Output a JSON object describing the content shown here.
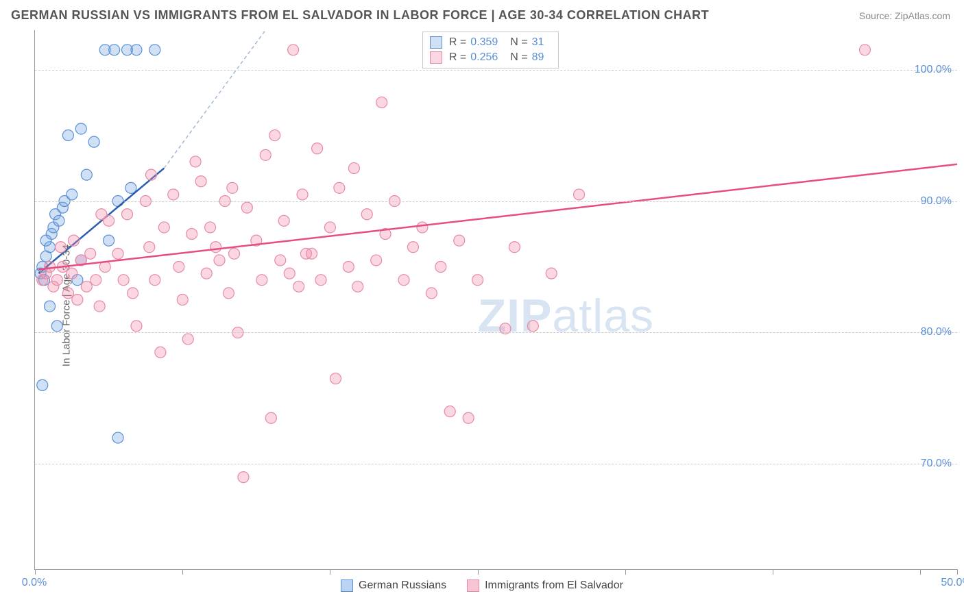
{
  "header": {
    "title": "GERMAN RUSSIAN VS IMMIGRANTS FROM EL SALVADOR IN LABOR FORCE | AGE 30-34 CORRELATION CHART",
    "source": "Source: ZipAtlas.com"
  },
  "chart": {
    "type": "scatter",
    "ylabel": "In Labor Force | Age 30-34",
    "xlim": [
      0,
      50
    ],
    "ylim": [
      62,
      103
    ],
    "x_ticks": [
      0,
      8,
      16,
      24,
      32,
      40,
      48,
      50
    ],
    "x_tick_labels": {
      "0": "0.0%",
      "50": "50.0%"
    },
    "y_gridlines": [
      70,
      80,
      90,
      100
    ],
    "y_tick_labels": {
      "70": "70.0%",
      "80": "80.0%",
      "90": "90.0%",
      "100": "100.0%"
    },
    "background_color": "#ffffff",
    "grid_color": "#cccccc",
    "axis_color": "#999999",
    "tick_label_color": "#5b8fd6",
    "watermark": "ZIPatlas",
    "watermark_color": "#d8e4f2",
    "series": [
      {
        "name": "German Russians",
        "marker_fill": "rgba(120,170,230,0.35)",
        "marker_stroke": "#5b8fd6",
        "line_color": "#2a5db0",
        "line_dash_color": "#9fb8d8",
        "marker_radius": 8,
        "r_value": "0.359",
        "n_value": "31",
        "regression": {
          "x1": 0.2,
          "y1": 84.5,
          "x2_solid": 7,
          "y2_solid": 92.5,
          "x2_dash": 12.5,
          "y2_dash": 103
        },
        "points": [
          [
            0.3,
            84.5
          ],
          [
            0.4,
            85.0
          ],
          [
            0.5,
            84.0
          ],
          [
            0.6,
            85.8
          ],
          [
            0.8,
            86.5
          ],
          [
            0.9,
            87.5
          ],
          [
            1.0,
            88.0
          ],
          [
            1.1,
            89.0
          ],
          [
            1.3,
            88.5
          ],
          [
            1.5,
            89.5
          ],
          [
            1.6,
            90.0
          ],
          [
            2.0,
            90.5
          ],
          [
            2.3,
            84.0
          ],
          [
            2.5,
            85.5
          ],
          [
            2.8,
            92.0
          ],
          [
            3.2,
            94.5
          ],
          [
            0.8,
            82.0
          ],
          [
            1.2,
            80.5
          ],
          [
            0.4,
            76.0
          ],
          [
            4.5,
            72.0
          ],
          [
            3.8,
            101.5
          ],
          [
            5.0,
            101.5
          ],
          [
            5.5,
            101.5
          ],
          [
            4.3,
            101.5
          ],
          [
            6.5,
            101.5
          ],
          [
            4.0,
            87.0
          ],
          [
            4.5,
            90.0
          ],
          [
            5.2,
            91.0
          ],
          [
            1.8,
            95.0
          ],
          [
            2.5,
            95.5
          ],
          [
            0.6,
            87.0
          ]
        ]
      },
      {
        "name": "Immigrants from El Salvador",
        "marker_fill": "rgba(240,140,170,0.35)",
        "marker_stroke": "#e68aa8",
        "line_color": "#e64d82",
        "marker_radius": 8,
        "r_value": "0.256",
        "n_value": "89",
        "regression": {
          "x1": 0.2,
          "y1": 84.8,
          "x2_solid": 50,
          "y2_solid": 92.8
        },
        "points": [
          [
            0.4,
            84.0
          ],
          [
            0.6,
            84.5
          ],
          [
            0.8,
            85.0
          ],
          [
            1.0,
            83.5
          ],
          [
            1.2,
            84.0
          ],
          [
            1.5,
            85.0
          ],
          [
            1.8,
            83.0
          ],
          [
            2.0,
            84.5
          ],
          [
            2.3,
            82.5
          ],
          [
            2.5,
            85.5
          ],
          [
            2.8,
            83.5
          ],
          [
            3.0,
            86.0
          ],
          [
            3.3,
            84.0
          ],
          [
            3.5,
            82.0
          ],
          [
            3.8,
            85.0
          ],
          [
            4.0,
            88.5
          ],
          [
            4.5,
            86.0
          ],
          [
            5.0,
            89.0
          ],
          [
            5.3,
            83.0
          ],
          [
            5.5,
            80.5
          ],
          [
            6.0,
            90.0
          ],
          [
            6.2,
            86.5
          ],
          [
            6.5,
            84.0
          ],
          [
            6.8,
            78.5
          ],
          [
            7.0,
            88.0
          ],
          [
            7.5,
            90.5
          ],
          [
            7.8,
            85.0
          ],
          [
            8.0,
            82.5
          ],
          [
            8.3,
            79.5
          ],
          [
            8.5,
            87.5
          ],
          [
            9.0,
            91.5
          ],
          [
            9.3,
            84.5
          ],
          [
            9.5,
            88.0
          ],
          [
            10.0,
            85.5
          ],
          [
            10.3,
            90.0
          ],
          [
            10.5,
            83.0
          ],
          [
            10.8,
            86.0
          ],
          [
            11.0,
            80.0
          ],
          [
            11.3,
            69.0
          ],
          [
            11.5,
            89.5
          ],
          [
            12.0,
            87.0
          ],
          [
            12.3,
            84.0
          ],
          [
            12.5,
            93.5
          ],
          [
            12.8,
            73.5
          ],
          [
            13.0,
            95.0
          ],
          [
            13.3,
            85.5
          ],
          [
            13.5,
            88.5
          ],
          [
            14.0,
            101.5
          ],
          [
            14.3,
            83.5
          ],
          [
            14.5,
            90.5
          ],
          [
            15.0,
            86.0
          ],
          [
            15.3,
            94.0
          ],
          [
            15.5,
            84.0
          ],
          [
            16.0,
            88.0
          ],
          [
            16.3,
            76.5
          ],
          [
            16.5,
            91.0
          ],
          [
            17.0,
            85.0
          ],
          [
            17.3,
            92.5
          ],
          [
            17.5,
            83.5
          ],
          [
            18.0,
            89.0
          ],
          [
            18.5,
            85.5
          ],
          [
            19.0,
            87.5
          ],
          [
            19.5,
            90.0
          ],
          [
            20.0,
            84.0
          ],
          [
            20.5,
            86.5
          ],
          [
            21.0,
            88.0
          ],
          [
            21.5,
            83.0
          ],
          [
            22.0,
            85.0
          ],
          [
            22.5,
            74.0
          ],
          [
            23.0,
            87.0
          ],
          [
            23.5,
            73.5
          ],
          [
            24.0,
            84.0
          ],
          [
            25.5,
            80.3
          ],
          [
            26.0,
            86.5
          ],
          [
            27.0,
            80.5
          ],
          [
            28.0,
            84.5
          ],
          [
            29.5,
            90.5
          ],
          [
            45.0,
            101.5
          ],
          [
            10.7,
            91.0
          ],
          [
            8.7,
            93.0
          ],
          [
            6.3,
            92.0
          ],
          [
            13.8,
            84.5
          ],
          [
            14.7,
            86.0
          ],
          [
            18.8,
            97.5
          ],
          [
            1.4,
            86.5
          ],
          [
            2.1,
            87.0
          ],
          [
            3.6,
            89.0
          ],
          [
            4.8,
            84.0
          ],
          [
            9.8,
            86.5
          ]
        ]
      }
    ],
    "legend_bottom": [
      {
        "label": "German Russians",
        "fill": "rgba(120,170,230,0.5)",
        "stroke": "#5b8fd6"
      },
      {
        "label": "Immigrants from El Salvador",
        "fill": "rgba(240,140,170,0.5)",
        "stroke": "#e68aa8"
      }
    ]
  }
}
